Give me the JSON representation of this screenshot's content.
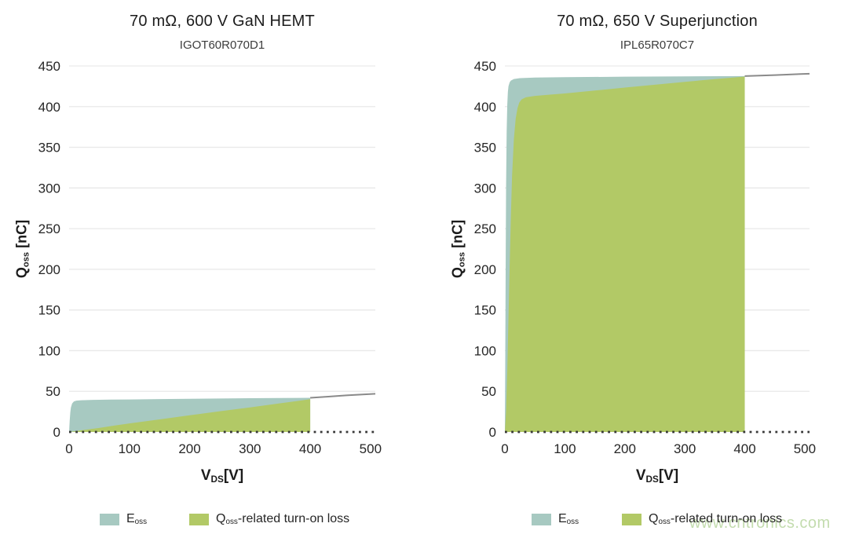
{
  "page": {
    "background": "#ffffff",
    "text_color": "#262626"
  },
  "watermark": {
    "text": "www.cntronics.com",
    "color": "#b9d6a0"
  },
  "legend": {
    "items": [
      {
        "name": "eoss",
        "swatch_color": "#a7c9c1",
        "label_main": "E",
        "label_sub": "oss",
        "label_rest": ""
      },
      {
        "name": "qoss-turn-on-loss",
        "swatch_color": "#b2c966",
        "label_main": "Q",
        "label_sub": "oss",
        "label_rest": "-related turn-on loss"
      }
    ]
  },
  "style": {
    "grid_color": "#e9e9e9",
    "tick_label_color": "#262626",
    "baseline_color": "#383838",
    "qoss_line_color": "#8a8a8a",
    "eoss_fill": "#a7c9c1",
    "loss_fill": "#b2c966"
  },
  "chart_data": [
    {
      "type": "area",
      "title": "70 mΩ, 600 V GaN HEMT",
      "subtitle": "IGOT60R070D1",
      "xlabel": {
        "main": "V",
        "sub": "DS",
        "rest": "[V]"
      },
      "ylabel": {
        "main": "Q",
        "sub": "oss",
        "rest": " [nC]"
      },
      "xlim": [
        0,
        508
      ],
      "ylim": [
        0,
        450
      ],
      "xticks": [
        0,
        100,
        200,
        300,
        400,
        500
      ],
      "yticks": [
        0,
        50,
        100,
        150,
        200,
        250,
        300,
        350,
        400,
        450
      ],
      "grid": true,
      "legend_position": "bottom",
      "fill_end_x": 400,
      "series": [
        {
          "name": "Qoss curve (Eoss region)",
          "role": "qoss",
          "fill_color": "#a7c9c1",
          "line_color": "#8a8a8a",
          "line_from_x": 400,
          "points": [
            [
              0,
              0
            ],
            [
              1,
              14
            ],
            [
              2,
              24
            ],
            [
              3,
              30
            ],
            [
              5,
              35
            ],
            [
              8,
              37.5
            ],
            [
              12,
              38.5
            ],
            [
              20,
              39
            ],
            [
              40,
              39.5
            ],
            [
              70,
              39.8
            ],
            [
              100,
              40
            ],
            [
              150,
              40.4
            ],
            [
              200,
              40.8
            ],
            [
              250,
              41.2
            ],
            [
              300,
              41.5
            ],
            [
              350,
              41.8
            ],
            [
              400,
              42
            ],
            [
              430,
              43.5
            ],
            [
              460,
              45
            ],
            [
              508,
              47
            ]
          ]
        },
        {
          "name": "Qoss-related turn-on loss",
          "role": "loss",
          "fill_color": "#b2c966",
          "points": [
            [
              0,
              0
            ],
            [
              25,
              2.5
            ],
            [
              50,
              5
            ],
            [
              75,
              7.8
            ],
            [
              100,
              10.5
            ],
            [
              150,
              15.5
            ],
            [
              200,
              20.5
            ],
            [
              250,
              25.5
            ],
            [
              300,
              30.2
            ],
            [
              350,
              35.2
            ],
            [
              400,
              40.3
            ]
          ]
        }
      ]
    },
    {
      "type": "area",
      "title": "70 mΩ, 650 V Superjunction",
      "subtitle": "IPL65R070C7",
      "xlabel": {
        "main": "V",
        "sub": "DS",
        "rest": "[V]"
      },
      "ylabel": {
        "main": "Q",
        "sub": "oss",
        "rest": " [nC]"
      },
      "xlim": [
        0,
        508
      ],
      "ylim": [
        0,
        450
      ],
      "xticks": [
        0,
        100,
        200,
        300,
        400,
        500
      ],
      "yticks": [
        0,
        50,
        100,
        150,
        200,
        250,
        300,
        350,
        400,
        450
      ],
      "grid": true,
      "legend_position": "bottom",
      "fill_end_x": 400,
      "series": [
        {
          "name": "Qoss curve (Eoss region)",
          "role": "qoss",
          "fill_color": "#a7c9c1",
          "line_color": "#8a8a8a",
          "line_from_x": 400,
          "points": [
            [
              0,
              0
            ],
            [
              0.5,
              70
            ],
            [
              1,
              150
            ],
            [
              1.5,
              230
            ],
            [
              2,
              300
            ],
            [
              3,
              370
            ],
            [
              4,
              402
            ],
            [
              5,
              418
            ],
            [
              6,
              425
            ],
            [
              8,
              430
            ],
            [
              10,
              432
            ],
            [
              15,
              434
            ],
            [
              25,
              435
            ],
            [
              50,
              435.8
            ],
            [
              100,
              436.2
            ],
            [
              200,
              436.8
            ],
            [
              300,
              437.2
            ],
            [
              400,
              437.6
            ],
            [
              450,
              438.8
            ],
            [
              508,
              440.5
            ]
          ]
        },
        {
          "name": "Qoss-related turn-on loss",
          "role": "loss",
          "fill_color": "#b2c966",
          "points": [
            [
              0,
              0
            ],
            [
              2,
              25
            ],
            [
              4,
              75
            ],
            [
              6,
              140
            ],
            [
              8,
              205
            ],
            [
              10,
              265
            ],
            [
              12,
              315
            ],
            [
              15,
              360
            ],
            [
              18,
              385
            ],
            [
              21,
              398
            ],
            [
              24,
              405
            ],
            [
              28,
              409
            ],
            [
              35,
              411.5
            ],
            [
              50,
              413.2
            ],
            [
              75,
              414.8
            ],
            [
              100,
              416.2
            ],
            [
              150,
              419.8
            ],
            [
              200,
              423.5
            ],
            [
              250,
              427
            ],
            [
              300,
              430.5
            ],
            [
              350,
              433.8
            ],
            [
              400,
              437
            ]
          ]
        }
      ]
    }
  ]
}
